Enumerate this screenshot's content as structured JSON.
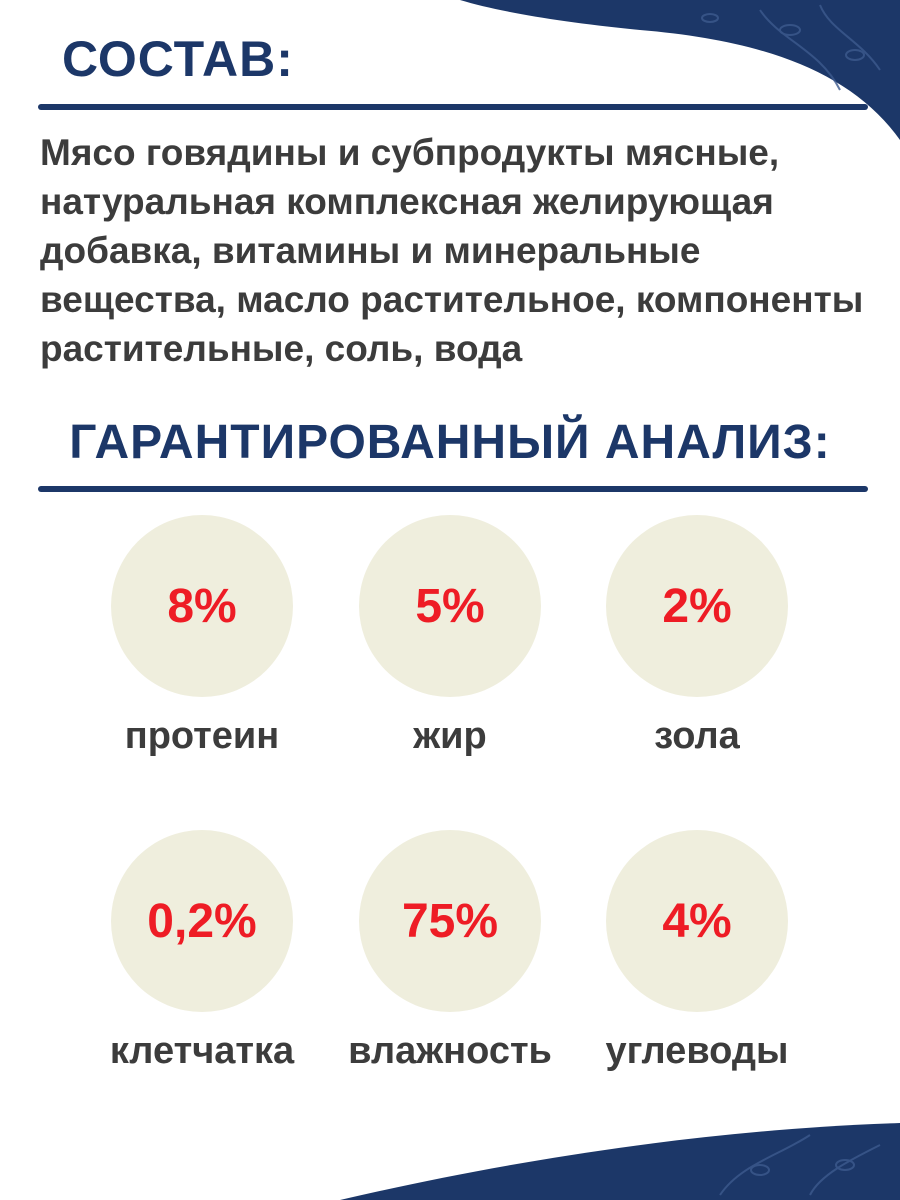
{
  "composition": {
    "heading": "СОСТАВ:",
    "text": "Мясо говядины и субпродукты мясные, натуральная комплексная желирующая добавка, витамины и минеральные вещества, масло растительное, компоненты растительные, соль, вода"
  },
  "analysis": {
    "heading": "ГАРАНТИРОВАННЫЙ АНАЛИЗ:",
    "items": [
      {
        "value": "8%",
        "label": "протеин"
      },
      {
        "value": "5%",
        "label": "жир"
      },
      {
        "value": "2%",
        "label": "зола"
      },
      {
        "value": "0,2%",
        "label": "клетчатка"
      },
      {
        "value": "75%",
        "label": "влажность"
      },
      {
        "value": "4%",
        "label": "углеводы"
      }
    ]
  },
  "colors": {
    "navy": "#1c3768",
    "accent_red": "#ee1c25",
    "circle_beige": "#efeedd",
    "text_gray": "#3c3c3c"
  }
}
